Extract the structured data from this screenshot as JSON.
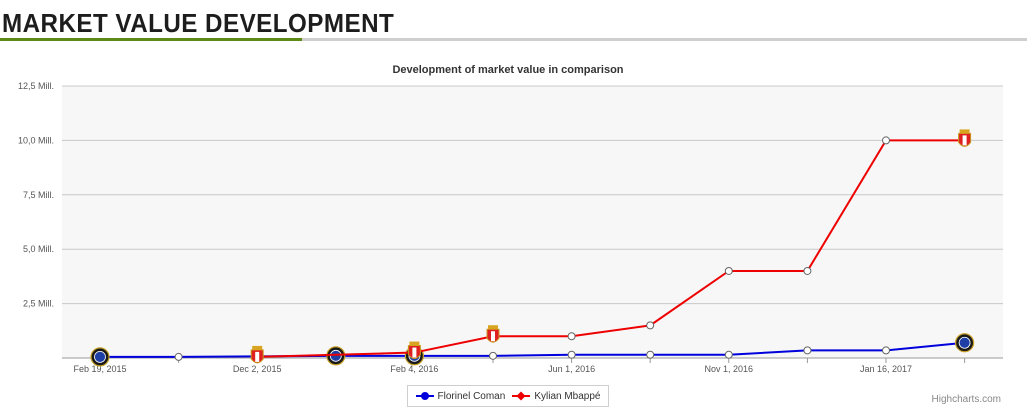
{
  "header": {
    "title": "MARKET VALUE DEVELOPMENT"
  },
  "credits": "Highcharts.com",
  "colors": {
    "accent": "#5d8b17",
    "coman": "#0000dd",
    "mbappe": "#ee0000",
    "plot_bg": "#f7f7f7",
    "grid": "#c8c8c8"
  },
  "chart_data": {
    "type": "line",
    "title": "Development of market value in comparison",
    "xlabel": "",
    "ylabel": "",
    "x_ticks": [
      "Feb 19, 2015",
      "Dec 2, 2015",
      "Feb 4, 2016",
      "Jun 1, 2016",
      "Nov 1, 2016",
      "Jan 16, 2017"
    ],
    "y_ticks": [
      "",
      "2,5 Mill.",
      "5,0 Mill.",
      "7,5 Mill.",
      "10,0 Mill.",
      "12,5 Mill."
    ],
    "ylim": [
      0,
      12.5
    ],
    "y_unit": "Mill. €",
    "grid": true,
    "legend": "bottom-center",
    "series": [
      {
        "name": "Florinel Coman",
        "color": "#0000dd",
        "marker": "circle",
        "points": [
          {
            "x": 0,
            "y": 0.05,
            "icon": "club-crest-icon"
          },
          {
            "x": 1,
            "y": 0.05
          },
          {
            "x": 3,
            "y": 0.1,
            "icon": "club-crest-icon"
          },
          {
            "x": 4,
            "y": 0.1,
            "icon": "club-crest-icon"
          },
          {
            "x": 5,
            "y": 0.1
          },
          {
            "x": 6,
            "y": 0.15
          },
          {
            "x": 7,
            "y": 0.15
          },
          {
            "x": 8,
            "y": 0.15
          },
          {
            "x": 9,
            "y": 0.35
          },
          {
            "x": 10,
            "y": 0.35
          },
          {
            "x": 11,
            "y": 0.7,
            "icon": "club-crest-icon"
          }
        ]
      },
      {
        "name": "Kylian Mbappé",
        "color": "#ee0000",
        "marker": "diamond",
        "points": [
          {
            "x": 2,
            "y": 0.05,
            "icon": "monaco-crest-icon"
          },
          {
            "x": 4,
            "y": 0.25,
            "icon": "monaco-crest-icon"
          },
          {
            "x": 5,
            "y": 1.0,
            "icon": "monaco-crest-icon"
          },
          {
            "x": 6,
            "y": 1.0
          },
          {
            "x": 7,
            "y": 1.5
          },
          {
            "x": 8,
            "y": 4.0
          },
          {
            "x": 9,
            "y": 4.0
          },
          {
            "x": 10,
            "y": 10.0
          },
          {
            "x": 11,
            "y": 10.0,
            "icon": "monaco-crest-icon"
          }
        ]
      }
    ]
  }
}
